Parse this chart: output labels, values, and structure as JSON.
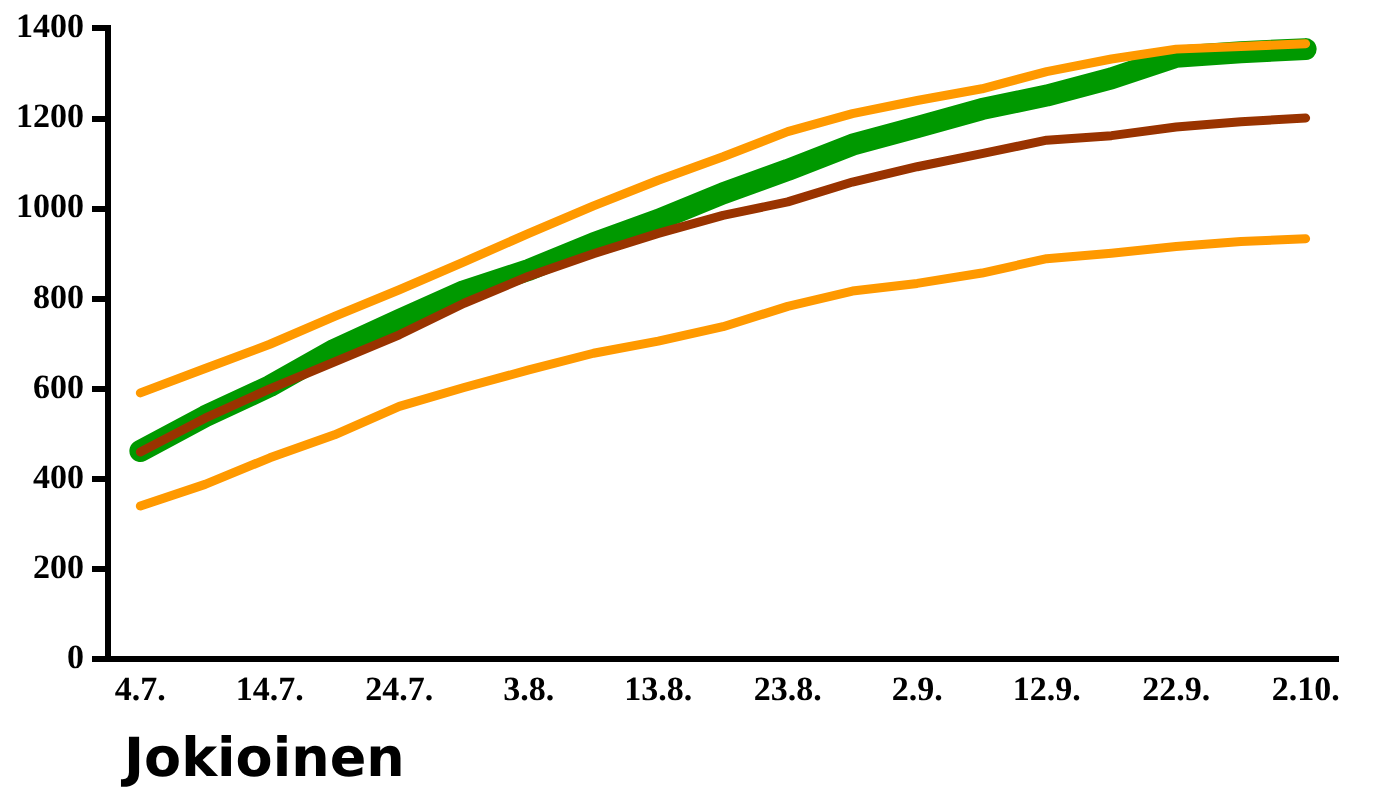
{
  "chart_data": {
    "type": "line",
    "title": "Jokioinen",
    "categories": [
      "4.7.",
      null,
      "14.7.",
      null,
      "24.7.",
      null,
      "3.8.",
      null,
      "13.8.",
      null,
      "23.8.",
      null,
      "2.9.",
      null,
      "12.9.",
      null,
      "22.9.",
      null,
      "2.10."
    ],
    "series": [
      {
        "color": "#ff9900",
        "values": [
          591,
          645,
          699,
          761,
          820,
          882,
          945,
          1006,
          1063,
          1115,
          1171,
          1211,
          1240,
          1266,
          1304,
          1332,
          1354,
          1360,
          1366
        ]
      },
      {
        "color": "#ff9900",
        "values": [
          340,
          388,
          447,
          498,
          561,
          603,
          642,
          679,
          706,
          738,
          783,
          817,
          834,
          857,
          889,
          901,
          916,
          927,
          933
        ]
      },
      {
        "color": "#993300",
        "values": [
          460,
          535,
          600,
          660,
          720,
          790,
          850,
          900,
          945,
          985,
          1015,
          1059,
          1093,
          1122,
          1152,
          1162,
          1181,
          1193,
          1201
        ]
      },
      {
        "color": "#009900",
        "values": [
          462,
          539,
          606,
          687,
          753,
          817,
          864,
          923,
          975,
          1034,
          1086,
          1142,
          1181,
          1221,
          1251,
          1289,
          1337,
          1347,
          1354
        ]
      }
    ],
    "ylim": [
      0,
      1400
    ],
    "yticks": [
      0,
      200,
      400,
      600,
      800,
      1000,
      1200,
      1400
    ],
    "grid": false,
    "legend": false,
    "marker": "none",
    "line_style": "solid"
  }
}
